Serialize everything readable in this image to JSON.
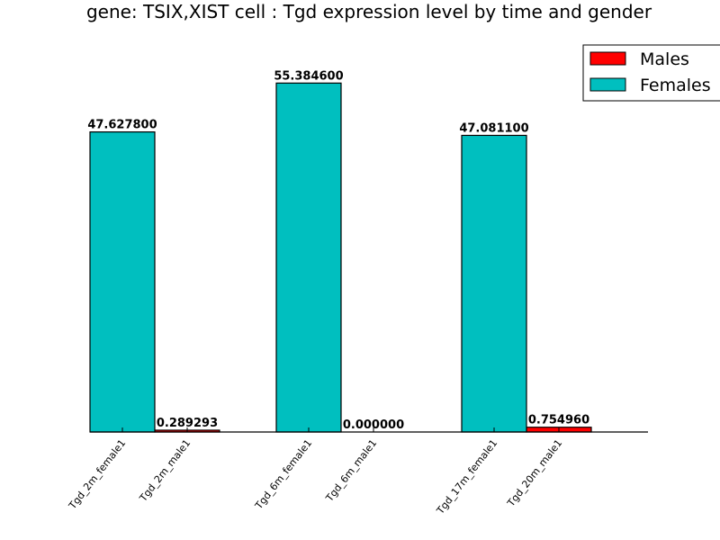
{
  "chart_data": {
    "type": "bar",
    "title": "gene: TSIX,XIST cell : Tgd expression level by time and gender",
    "xlabel": "",
    "ylabel": "",
    "ylim": [
      0,
      60
    ],
    "grid": false,
    "legend_placement": "top-right",
    "categories": [
      "Tgd_2m_female1",
      "Tgd_2m_male1",
      "Tgd_6m_female1",
      "Tgd_6m_male1",
      "Tgd_17m_female1",
      "Tgd_20m_male1"
    ],
    "series": [
      {
        "name": "Males",
        "color": "#ff0000",
        "points": [
          {
            "category": "Tgd_2m_male1",
            "value": 0.289293,
            "label": "0.289293"
          },
          {
            "category": "Tgd_6m_male1",
            "value": 0.0,
            "label": "0.000000"
          },
          {
            "category": "Tgd_20m_male1",
            "value": 0.75496,
            "label": "0.754960"
          }
        ]
      },
      {
        "name": "Females",
        "color": "#00bfbf",
        "points": [
          {
            "category": "Tgd_2m_female1",
            "value": 47.6278,
            "label": "47.627800"
          },
          {
            "category": "Tgd_6m_female1",
            "value": 55.3846,
            "label": "55.384600"
          },
          {
            "category": "Tgd_17m_female1",
            "value": 47.0811,
            "label": "47.081100"
          }
        ]
      }
    ]
  }
}
